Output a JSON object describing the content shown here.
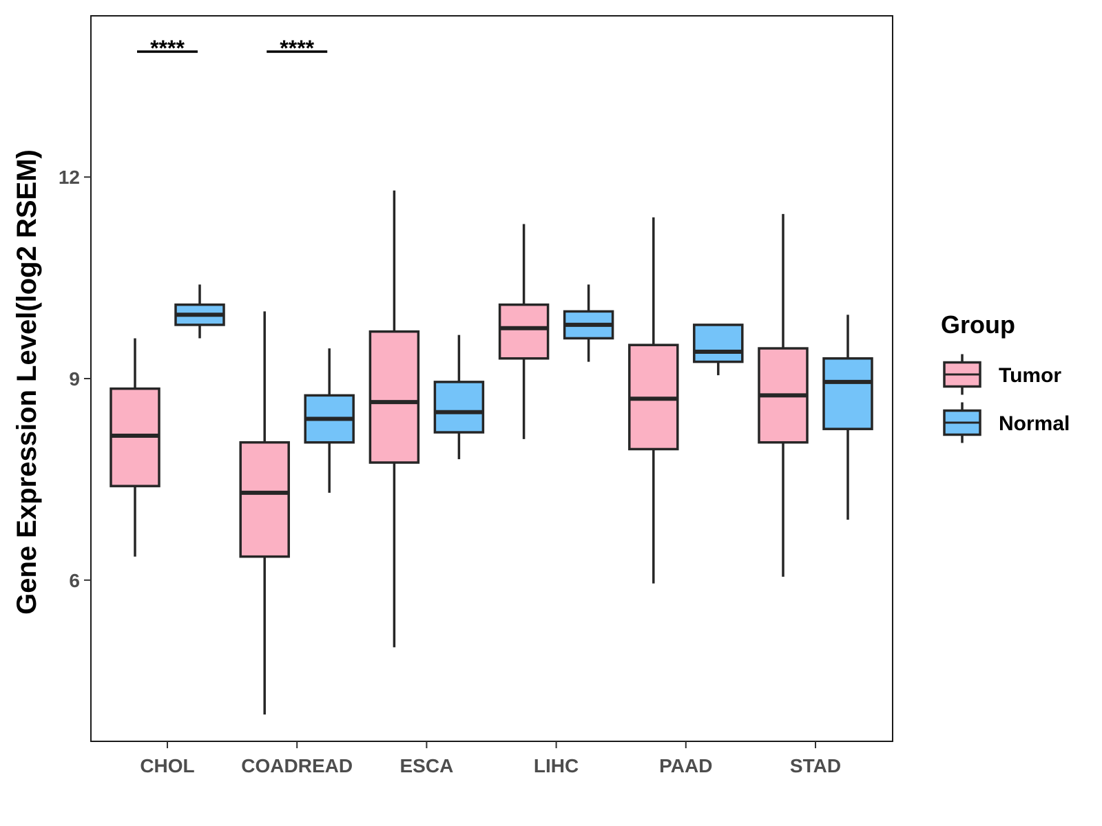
{
  "chart_data": {
    "type": "boxplot",
    "title": "",
    "xlabel": "",
    "ylabel": "Gene Expression Level(log2 RSEM)",
    "ylim": [
      3.6,
      14.4
    ],
    "yticks": [
      6,
      9,
      12
    ],
    "grid": false,
    "legend": {
      "title": "Group",
      "position": "right",
      "entries": [
        {
          "name": "Tumor",
          "color": "#FBB1C3"
        },
        {
          "name": "Normal",
          "color": "#74C3F9"
        }
      ]
    },
    "categories": [
      "CHOL",
      "COADREAD",
      "ESCA",
      "LIHC",
      "PAAD",
      "STAD"
    ],
    "series": [
      {
        "name": "Tumor",
        "color": "#FBB1C3",
        "boxes": [
          {
            "min": 6.35,
            "q1": 7.4,
            "median": 8.15,
            "q3": 8.85,
            "max": 9.6
          },
          {
            "min": 4.0,
            "q1": 6.35,
            "median": 7.3,
            "q3": 8.05,
            "max": 10.0
          },
          {
            "min": 5.0,
            "q1": 7.75,
            "median": 8.65,
            "q3": 9.7,
            "max": 11.8
          },
          {
            "min": 8.1,
            "q1": 9.3,
            "median": 9.75,
            "q3": 10.1,
            "max": 11.3
          },
          {
            "min": 5.95,
            "q1": 7.95,
            "median": 8.7,
            "q3": 9.5,
            "max": 11.4
          },
          {
            "min": 6.05,
            "q1": 8.05,
            "median": 8.75,
            "q3": 9.45,
            "max": 11.45
          }
        ]
      },
      {
        "name": "Normal",
        "color": "#74C3F9",
        "boxes": [
          {
            "min": 9.6,
            "q1": 9.8,
            "median": 9.95,
            "q3": 10.1,
            "max": 10.4
          },
          {
            "min": 7.3,
            "q1": 8.05,
            "median": 8.4,
            "q3": 8.75,
            "max": 9.45
          },
          {
            "min": 7.8,
            "q1": 8.2,
            "median": 8.5,
            "q3": 8.95,
            "max": 9.65
          },
          {
            "min": 9.25,
            "q1": 9.6,
            "median": 9.8,
            "q3": 10.0,
            "max": 10.4
          },
          {
            "min": 9.05,
            "q1": 9.25,
            "median": 9.4,
            "q3": 9.8,
            "max": 9.8
          },
          {
            "min": 6.9,
            "q1": 8.25,
            "median": 8.95,
            "q3": 9.3,
            "max": 9.95
          }
        ]
      }
    ],
    "annotations": [
      {
        "category": "CHOL",
        "label": "****"
      },
      {
        "category": "COADREAD",
        "label": "****"
      }
    ]
  }
}
